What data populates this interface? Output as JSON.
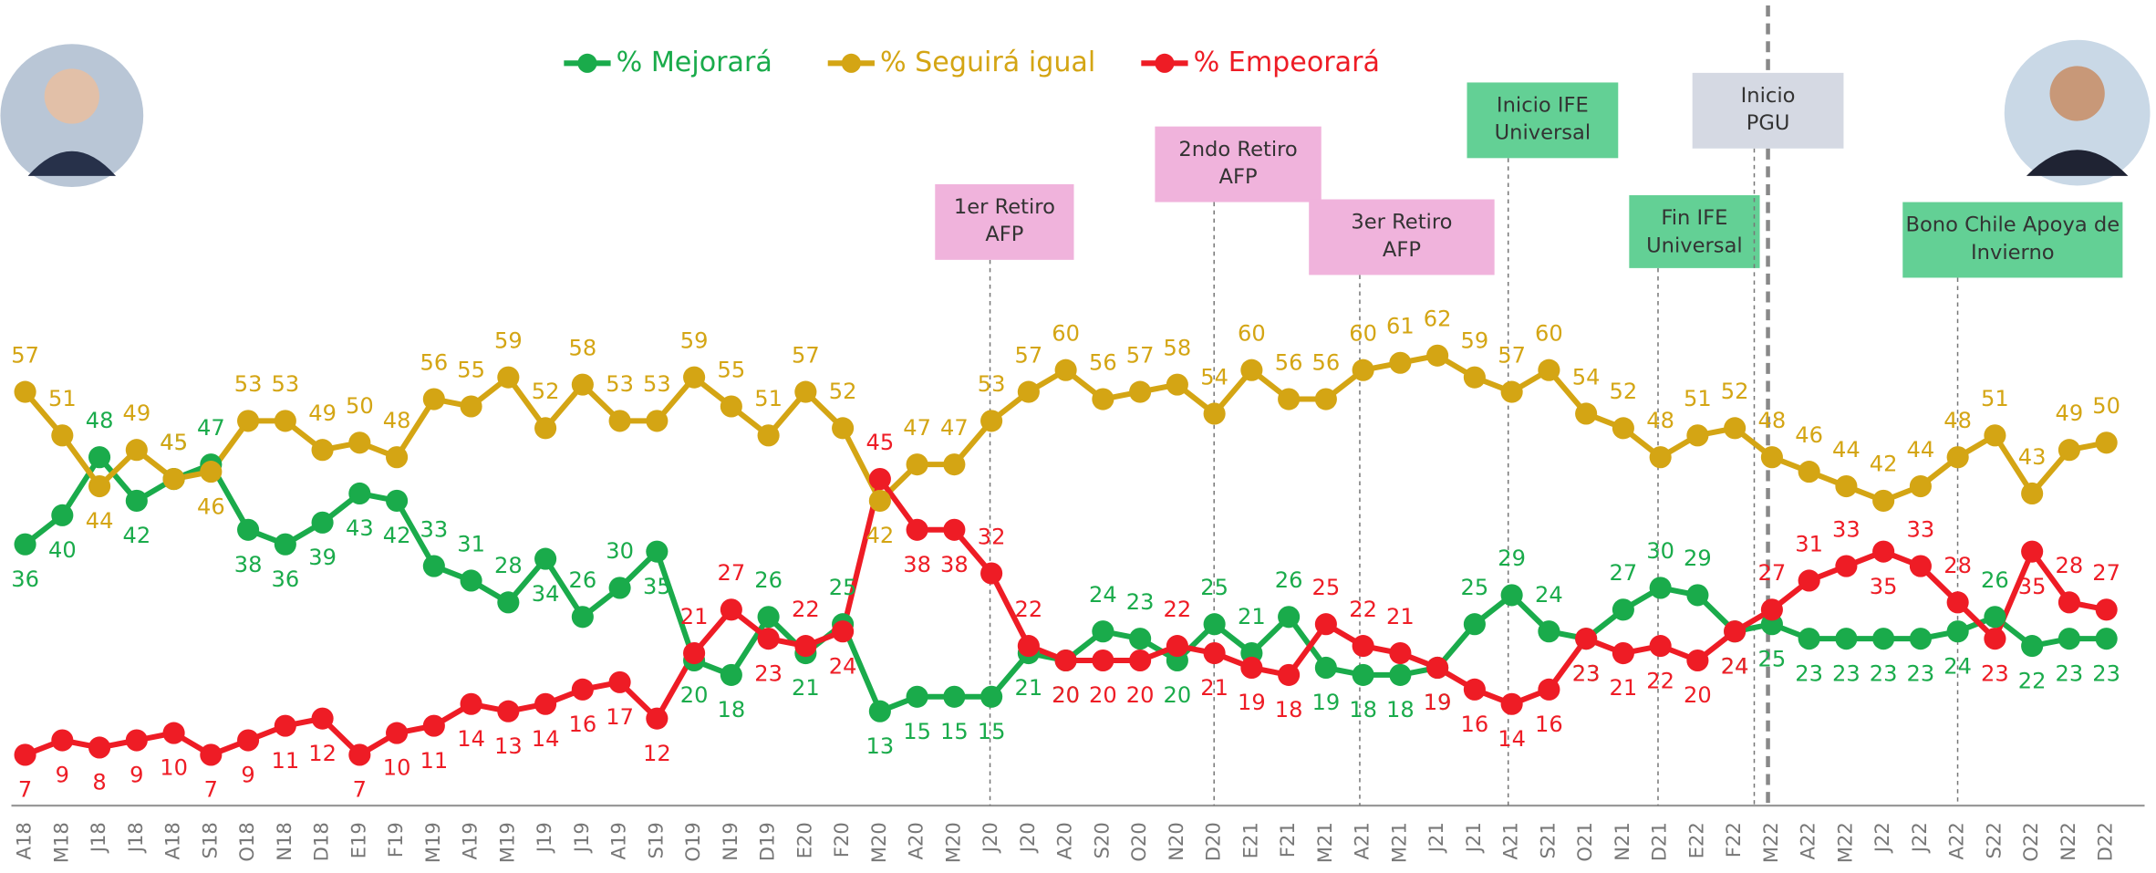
{
  "chart_data": {
    "type": "line",
    "categories": [
      "A18",
      "M18",
      "J18",
      "J18",
      "A18",
      "S18",
      "O18",
      "N18",
      "D18",
      "E19",
      "F19",
      "M19",
      "A19",
      "M19",
      "J19",
      "J19",
      "A19",
      "S19",
      "O19",
      "N19",
      "D19",
      "E20",
      "F20",
      "M20",
      "A20",
      "M20",
      "J20",
      "J20",
      "A20",
      "S20",
      "O20",
      "N20",
      "D20",
      "E21",
      "F21",
      "M21",
      "A21",
      "M21",
      "J21",
      "J21",
      "A21",
      "S21",
      "O21",
      "N21",
      "D21",
      "E22",
      "F22",
      "M22",
      "A22",
      "M22",
      "J22",
      "J22",
      "A22",
      "S22",
      "O22",
      "N22",
      "D22"
    ],
    "series": [
      {
        "name": "% Mejorará",
        "color": "#1aab4b",
        "values": [
          36,
          40,
          48,
          42,
          45,
          47,
          38,
          36,
          39,
          43,
          42,
          33,
          31,
          28,
          34,
          26,
          30,
          35,
          20,
          18,
          26,
          21,
          25,
          13,
          15,
          15,
          15,
          21,
          20,
          24,
          23,
          20,
          25,
          21,
          26,
          19,
          18,
          18,
          19,
          25,
          29,
          24,
          23,
          27,
          30,
          29,
          24,
          25,
          23,
          23,
          23,
          23,
          24,
          26,
          22,
          23,
          23
        ]
      },
      {
        "name": "% Seguirá igual",
        "color": "#d4a514",
        "values": [
          57,
          51,
          44,
          49,
          45,
          46,
          53,
          53,
          49,
          50,
          48,
          56,
          55,
          59,
          52,
          58,
          53,
          53,
          59,
          55,
          51,
          57,
          52,
          42,
          47,
          47,
          53,
          57,
          60,
          56,
          57,
          58,
          54,
          60,
          56,
          56,
          60,
          61,
          62,
          59,
          57,
          60,
          54,
          52,
          48,
          51,
          52,
          48,
          46,
          44,
          42,
          44,
          48,
          51,
          43,
          49,
          50
        ]
      },
      {
        "name": "% Empeorará",
        "color": "#ee1c25",
        "values": [
          7,
          9,
          8,
          9,
          10,
          7,
          9,
          11,
          12,
          7,
          10,
          11,
          14,
          13,
          14,
          16,
          17,
          12,
          21,
          27,
          23,
          22,
          24,
          45,
          38,
          38,
          32,
          22,
          20,
          20,
          20,
          22,
          21,
          19,
          18,
          25,
          22,
          21,
          19,
          16,
          14,
          16,
          23,
          21,
          22,
          20,
          24,
          27,
          31,
          33,
          35,
          33,
          28,
          23,
          35,
          28,
          27
        ]
      }
    ],
    "ylim": [
      0,
      70
    ],
    "annotations": [
      {
        "lines": [
          "1er Retiro",
          "AFP"
        ],
        "color": "#f0b3dc"
      },
      {
        "lines": [
          "2ndo Retiro",
          "AFP"
        ],
        "color": "#f0b3dc"
      },
      {
        "lines": [
          "3er Retiro",
          "AFP"
        ],
        "color": "#f0b3dc"
      },
      {
        "lines": [
          "Inicio IFE",
          "Universal"
        ],
        "color": "#63d095"
      },
      {
        "lines": [
          "Fin IFE",
          "Universal"
        ],
        "color": "#63d095"
      },
      {
        "lines": [
          "Inicio",
          "PGU"
        ],
        "color": "#d5d9e3"
      },
      {
        "lines": [
          "Bono Chile Apoya de",
          "Invierno"
        ],
        "color": "#63d095"
      }
    ]
  }
}
